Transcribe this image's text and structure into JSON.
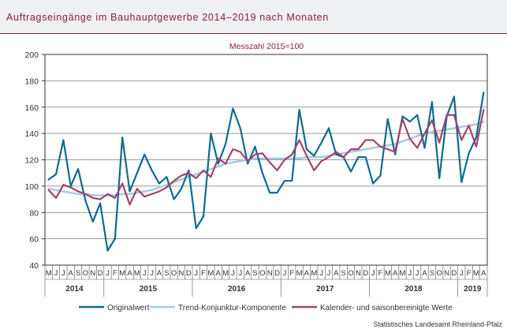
{
  "header": {
    "title": "Auftragseingänge im Bauhauptgewerbe 2014–2019 nach Monaten"
  },
  "source": "Statistisches Landesamt  Rheinland-Pfalz",
  "colors": {
    "title": "#8b1d3b",
    "original": "#0f6b8c",
    "trend": "#a8cce0",
    "seasonal": "#a0446e"
  },
  "chart_data": {
    "type": "line",
    "subtitle": "Messzahl 2015=100",
    "ylim": [
      40,
      200
    ],
    "yticks": [
      40,
      60,
      80,
      100,
      120,
      140,
      160,
      180,
      200
    ],
    "grid": true,
    "legend_position": "bottom",
    "categories": [
      "M",
      "J",
      "J",
      "A",
      "S",
      "O",
      "N",
      "D",
      "J",
      "F",
      "M",
      "A",
      "M",
      "J",
      "J",
      "A",
      "S",
      "O",
      "N",
      "D",
      "J",
      "F",
      "M",
      "A",
      "M",
      "J",
      "J",
      "A",
      "S",
      "O",
      "N",
      "D",
      "J",
      "F",
      "M",
      "A",
      "M",
      "J",
      "J",
      "A",
      "S",
      "O",
      "N",
      "D",
      "J",
      "F",
      "M",
      "A",
      "M",
      "J",
      "J",
      "A",
      "S",
      "O",
      "N",
      "D",
      "J",
      "F",
      "M",
      "A"
    ],
    "year_groups": [
      {
        "label": "2014",
        "start": 0,
        "count": 8
      },
      {
        "label": "2015",
        "start": 8,
        "count": 12
      },
      {
        "label": "2016",
        "start": 20,
        "count": 12
      },
      {
        "label": "2017",
        "start": 32,
        "count": 12
      },
      {
        "label": "2018",
        "start": 44,
        "count": 12
      },
      {
        "label": "2019",
        "start": 56,
        "count": 4
      }
    ],
    "series": [
      {
        "name": "Originalwert",
        "color": "#0f6b8c",
        "values": [
          105,
          109,
          135,
          100,
          113,
          89,
          73,
          87,
          51,
          60,
          137,
          96,
          110,
          124,
          112,
          102,
          107,
          90,
          98,
          112,
          68,
          77,
          140,
          117,
          132,
          159,
          144,
          117,
          130,
          110,
          95,
          95,
          104,
          104,
          158,
          128,
          123,
          133,
          144,
          124,
          122,
          111,
          122,
          122,
          102,
          108,
          151,
          124,
          153,
          149,
          154,
          129,
          164,
          106,
          153,
          168,
          103,
          125,
          137,
          171
        ]
      },
      {
        "name": "Trend-Konjunktur-Komponente",
        "color": "#a8cce0",
        "values": [
          98,
          97,
          96,
          95,
          94,
          94,
          93,
          93,
          93,
          93,
          94,
          94,
          95,
          96,
          97,
          99,
          101,
          103,
          105,
          107,
          109,
          111,
          113,
          115,
          117,
          118,
          119,
          120,
          121,
          121,
          121,
          121,
          121,
          121,
          121,
          122,
          122,
          122,
          123,
          124,
          125,
          126,
          127,
          128,
          129,
          130,
          131,
          132,
          134,
          136,
          138,
          140,
          141,
          142,
          143,
          144,
          145,
          146,
          147,
          149
        ]
      },
      {
        "name": "Kalender- und saisonbereinigte Werte",
        "color": "#a0446e",
        "values": [
          97,
          91,
          101,
          99,
          96,
          94,
          91,
          90,
          94,
          91,
          102,
          86,
          98,
          92,
          94,
          96,
          99,
          104,
          108,
          110,
          106,
          112,
          107,
          121,
          117,
          128,
          126,
          119,
          124,
          125,
          118,
          112,
          120,
          124,
          135,
          123,
          112,
          119,
          122,
          126,
          122,
          128,
          128,
          135,
          135,
          130,
          128,
          126,
          151,
          136,
          129,
          140,
          150,
          133,
          154,
          154,
          135,
          146,
          130,
          158
        ]
      }
    ]
  }
}
